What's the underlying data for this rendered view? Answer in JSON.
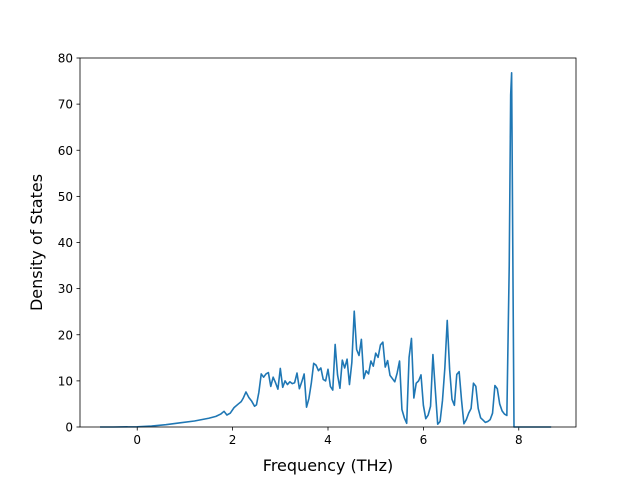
{
  "chart_data": {
    "type": "line",
    "title": "",
    "xlabel": "Frequency (THz)",
    "ylabel": "Density of States",
    "xlim": [
      -1.2,
      9.2
    ],
    "ylim": [
      0,
      80
    ],
    "x_ticks": [
      0,
      2,
      4,
      6,
      8
    ],
    "y_ticks": [
      0,
      10,
      20,
      30,
      40,
      50,
      60,
      70,
      80
    ],
    "x_tick_labels": [
      "0",
      "2",
      "4",
      "6",
      "8"
    ],
    "y_tick_labels": [
      "0",
      "10",
      "20",
      "30",
      "40",
      "50",
      "60",
      "70",
      "80"
    ],
    "grid": false,
    "legend": null,
    "series": [
      {
        "color": "#1f77b4",
        "x": [
          -0.78,
          -0.5,
          0.0,
          0.3,
          0.6,
          0.9,
          1.2,
          1.5,
          1.65,
          1.75,
          1.82,
          1.88,
          1.95,
          2.03,
          2.12,
          2.18,
          2.22,
          2.28,
          2.34,
          2.4,
          2.46,
          2.5,
          2.55,
          2.6,
          2.65,
          2.7,
          2.75,
          2.8,
          2.85,
          2.9,
          2.95,
          3.0,
          3.05,
          3.1,
          3.15,
          3.2,
          3.25,
          3.3,
          3.35,
          3.4,
          3.45,
          3.5,
          3.55,
          3.6,
          3.65,
          3.7,
          3.75,
          3.8,
          3.85,
          3.9,
          3.95,
          4.0,
          4.05,
          4.1,
          4.15,
          4.2,
          4.25,
          4.3,
          4.35,
          4.4,
          4.45,
          4.5,
          4.55,
          4.6,
          4.65,
          4.7,
          4.75,
          4.8,
          4.85,
          4.9,
          4.95,
          5.0,
          5.05,
          5.1,
          5.15,
          5.2,
          5.25,
          5.3,
          5.35,
          5.4,
          5.45,
          5.5,
          5.55,
          5.6,
          5.65,
          5.7,
          5.75,
          5.8,
          5.85,
          5.9,
          5.95,
          6.0,
          6.05,
          6.1,
          6.15,
          6.2,
          6.25,
          6.3,
          6.35,
          6.4,
          6.45,
          6.5,
          6.55,
          6.6,
          6.65,
          6.7,
          6.75,
          6.8,
          6.85,
          6.9,
          6.95,
          7.0,
          7.05,
          7.1,
          7.15,
          7.2,
          7.25,
          7.3,
          7.35,
          7.4,
          7.45,
          7.5,
          7.55,
          7.6,
          7.65,
          7.7,
          7.75,
          7.8,
          7.83,
          7.85,
          7.88,
          7.9,
          7.92,
          8.0,
          8.68
        ],
        "y": [
          0,
          0,
          0.05,
          0.2,
          0.5,
          0.9,
          1.3,
          1.9,
          2.3,
          2.8,
          3.4,
          2.6,
          3.0,
          4.2,
          5.0,
          5.5,
          6.2,
          7.6,
          6.4,
          5.6,
          4.5,
          4.8,
          7.5,
          11.5,
          10.8,
          11.5,
          11.8,
          8.8,
          10.8,
          9.6,
          8.2,
          12.7,
          8.6,
          10.0,
          9.2,
          9.8,
          9.4,
          9.6,
          11.7,
          8.3,
          9.8,
          11.5,
          4.3,
          6.2,
          9.5,
          13.8,
          13.4,
          12.2,
          12.8,
          10.3,
          10.0,
          12.5,
          8.8,
          8.0,
          17.9,
          11.3,
          8.4,
          14.5,
          12.8,
          14.7,
          9.2,
          14.0,
          25.1,
          16.8,
          15.5,
          19.0,
          10.5,
          12.2,
          11.5,
          14.3,
          13.2,
          16.0,
          15.1,
          17.8,
          18.4,
          13.0,
          14.4,
          11.2,
          10.5,
          9.8,
          11.7,
          14.3,
          3.8,
          2.0,
          0.8,
          15.1,
          19.2,
          6.3,
          9.5,
          10.0,
          11.3,
          4.7,
          1.8,
          2.6,
          4.5,
          15.7,
          8.0,
          0.6,
          1.2,
          5.7,
          12.8,
          23.1,
          12.5,
          6.0,
          4.7,
          11.4,
          12.0,
          5.8,
          0.7,
          1.6,
          3.0,
          4.0,
          9.5,
          8.8,
          4.0,
          2.0,
          1.5,
          1.0,
          1.2,
          1.6,
          3.0,
          9.0,
          8.3,
          5.0,
          3.5,
          2.8,
          2.5,
          35.0,
          72.0,
          76.8,
          30.0,
          0.0,
          0.0,
          0.0,
          0.0
        ]
      }
    ]
  }
}
